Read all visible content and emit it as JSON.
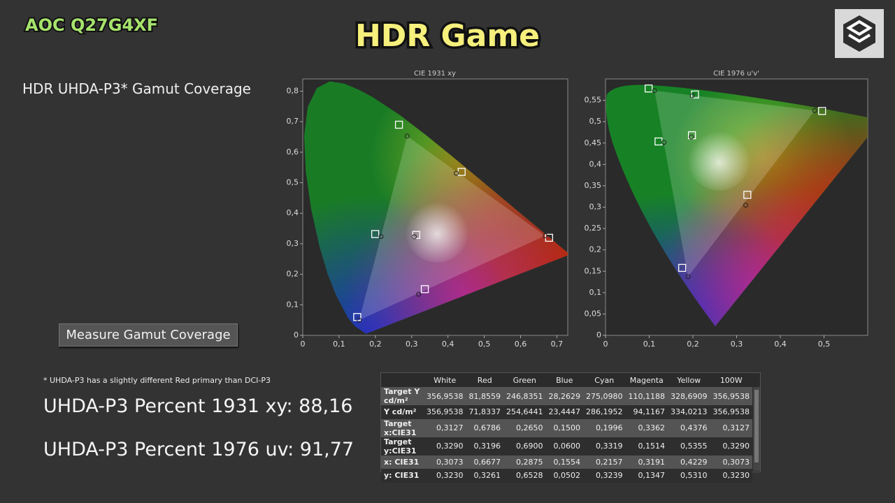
{
  "brand": "AOC Q27G4XF",
  "title": "HDR Game",
  "panel_heading": "HDR UHDA-P3* Gamut Coverage",
  "button": "Measure Gamut Coverage",
  "footnote": "* UHDA-P3 has a slightly different Red primary than DCI-P3",
  "result_1931": "UHDA-P3 Percent 1931 xy: 88,16",
  "result_1976": "UHDA-P3 Percent 1976 uv: 91,77",
  "chart_data": [
    {
      "type": "scatter",
      "title": "CIE 1931 xy",
      "xlim": [
        0,
        0.73
      ],
      "ylim": [
        0,
        0.84
      ],
      "xticks": [
        0,
        {
          "value": 0.1,
          "label": "0,1"
        },
        {
          "value": 0.2,
          "label": "0,2"
        },
        {
          "value": 0.3,
          "label": "0,3"
        },
        {
          "value": 0.4,
          "label": "0,4"
        },
        {
          "value": 0.5,
          "label": "0,5"
        },
        {
          "value": 0.6,
          "label": "0,6"
        },
        {
          "value": 0.7,
          "label": "0,7"
        }
      ],
      "yticks": [
        0,
        {
          "value": 0.1,
          "label": "0,1"
        },
        {
          "value": 0.2,
          "label": "0,2"
        },
        {
          "value": 0.3,
          "label": "0,3"
        },
        {
          "value": 0.4,
          "label": "0,4"
        },
        {
          "value": 0.5,
          "label": "0,5"
        },
        {
          "value": 0.6,
          "label": "0,6"
        },
        {
          "value": 0.7,
          "label": "0,7"
        },
        {
          "value": 0.8,
          "label": "0,8"
        }
      ],
      "series": [
        {
          "marker": "square",
          "color": "#ffffff",
          "x": [
            0.3127,
            0.6786,
            0.265,
            0.15,
            0.1996,
            0.3362,
            0.4376
          ],
          "y": [
            0.329,
            0.3196,
            0.69,
            0.06,
            0.3319,
            0.1514,
            0.5355
          ]
        },
        {
          "marker": "circle",
          "color": "#222222",
          "x": [
            0.3073,
            0.6677,
            0.2875,
            0.1554,
            0.2157,
            0.3191,
            0.4229
          ],
          "y": [
            0.323,
            0.3261,
            0.6528,
            0.0502,
            0.3239,
            0.1347,
            0.531
          ]
        }
      ]
    },
    {
      "type": "scatter",
      "title": "CIE 1976 u'v'",
      "xlim": [
        0,
        0.6
      ],
      "ylim": [
        0,
        0.6
      ],
      "xticks": [
        0,
        {
          "value": 0.1,
          "label": "0,1"
        },
        {
          "value": 0.2,
          "label": "0,2"
        },
        {
          "value": 0.3,
          "label": "0,3"
        },
        {
          "value": 0.4,
          "label": "0,4"
        },
        {
          "value": 0.5,
          "label": "0,5"
        }
      ],
      "yticks": [
        0,
        {
          "value": 0.05,
          "label": "0,05"
        },
        {
          "value": 0.1,
          "label": "0,1"
        },
        {
          "value": 0.15,
          "label": "0,15"
        },
        {
          "value": 0.2,
          "label": "0,2"
        },
        {
          "value": 0.25,
          "label": "0,25"
        },
        {
          "value": 0.3,
          "label": "0,3"
        },
        {
          "value": 0.35,
          "label": "0,35"
        },
        {
          "value": 0.4,
          "label": "0,4"
        },
        {
          "value": 0.45,
          "label": "0,45"
        },
        {
          "value": 0.5,
          "label": "0,5"
        },
        {
          "value": 0.55,
          "label": "0,55"
        }
      ],
      "series": [
        {
          "marker": "square",
          "color": "#ffffff",
          "x": [
            0.1978,
            0.4955,
            0.0986,
            0.1754,
            0.1213,
            0.3245,
            0.2047
          ],
          "y": [
            0.4683,
            0.5251,
            0.5777,
            0.1579,
            0.4537,
            0.3288,
            0.5636
          ]
        },
        {
          "marker": "circle",
          "color": "#222222",
          "x": [
            0.1963,
            0.4788,
            0.1121,
            0.1888,
            0.1337,
            0.3208,
            0.1984
          ],
          "y": [
            0.4643,
            0.5262,
            0.5727,
            0.1373,
            0.4516,
            0.3047,
            0.5605
          ]
        }
      ]
    }
  ],
  "table": {
    "columns": [
      "White",
      "Red",
      "Green",
      "Blue",
      "Cyan",
      "Magenta",
      "Yellow",
      "100W"
    ],
    "rows": [
      {
        "label": "Target Y cd/m²",
        "cells": [
          "356,9538",
          "81,8559",
          "246,8351",
          "28,2629",
          "275,0980",
          "110,1188",
          "328,6909",
          "356,9538"
        ]
      },
      {
        "label": "Y cd/m²",
        "cells": [
          "356,9538",
          "71,8337",
          "254,6441",
          "23,4447",
          "286,1952",
          "94,1167",
          "334,0213",
          "356,9538"
        ]
      },
      {
        "label": "Target x:CIE31",
        "cells": [
          "0,3127",
          "0,6786",
          "0,2650",
          "0,1500",
          "0,1996",
          "0,3362",
          "0,4376",
          "0,3127"
        ]
      },
      {
        "label": "Target y:CIE31",
        "cells": [
          "0,3290",
          "0,3196",
          "0,6900",
          "0,0600",
          "0,3319",
          "0,1514",
          "0,5355",
          "0,3290"
        ]
      },
      {
        "label": "x: CIE31",
        "cells": [
          "0,3073",
          "0,6677",
          "0,2875",
          "0,1554",
          "0,2157",
          "0,3191",
          "0,4229",
          "0,3073"
        ]
      },
      {
        "label": "y: CIE31",
        "cells": [
          "0,3230",
          "0,3261",
          "0,6528",
          "0,0502",
          "0,3239",
          "0,1347",
          "0,5310",
          "0,3230"
        ]
      }
    ]
  }
}
